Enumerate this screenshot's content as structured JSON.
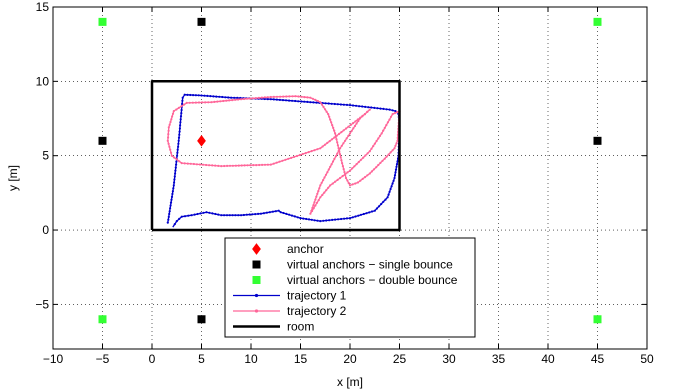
{
  "chart_data": {
    "type": "scatter",
    "xlabel": "x [m]",
    "ylabel": "y [m]",
    "xlim": [
      -10,
      50
    ],
    "ylim": [
      -8,
      15
    ],
    "xticks": [
      -10,
      -5,
      0,
      5,
      10,
      15,
      20,
      25,
      30,
      35,
      40,
      45,
      50
    ],
    "yticks": [
      -5,
      0,
      5,
      10,
      15
    ],
    "xtick_labels": [
      "−10",
      "−5",
      "0",
      "5",
      "10",
      "15",
      "20",
      "25",
      "30",
      "35",
      "40",
      "45",
      "50"
    ],
    "ytick_labels": [
      "−5",
      "0",
      "5",
      "10",
      "15"
    ],
    "grid": true,
    "legend_position": "bottom-center",
    "series": [
      {
        "name": "anchor",
        "marker": "diamond",
        "color": "#ff0000",
        "points": [
          [
            5,
            6
          ]
        ]
      },
      {
        "name": "virtual anchors − single bounce",
        "marker": "square",
        "color": "#000000",
        "points": [
          [
            -5,
            6
          ],
          [
            45,
            6
          ],
          [
            5,
            14
          ],
          [
            5,
            -6
          ]
        ]
      },
      {
        "name": "virtual anchors − double bounce",
        "marker": "square",
        "color": "#33ff33",
        "points": [
          [
            -5,
            14
          ],
          [
            45,
            14
          ],
          [
            -5,
            -6
          ],
          [
            45,
            -6
          ]
        ]
      },
      {
        "name": "trajectory 1",
        "marker": "line-dots",
        "color": "#0000cc",
        "points": [
          [
            1.6,
            0.5
          ],
          [
            2.2,
            3
          ],
          [
            2.7,
            6
          ],
          [
            3.1,
            8.9
          ],
          [
            3.3,
            9.1
          ],
          [
            5,
            9.05
          ],
          [
            8,
            8.9
          ],
          [
            12,
            8.8
          ],
          [
            16,
            8.6
          ],
          [
            20,
            8.4
          ],
          [
            24,
            8.1
          ],
          [
            24.6,
            8
          ],
          [
            24.9,
            7.8
          ],
          [
            25,
            7
          ],
          [
            24.9,
            5
          ],
          [
            24.5,
            3.5
          ],
          [
            23.8,
            2.2
          ],
          [
            22.5,
            1.3
          ],
          [
            20,
            0.8
          ],
          [
            17,
            0.6
          ],
          [
            15,
            0.8
          ],
          [
            13,
            1.2
          ],
          [
            12.8,
            1.3
          ],
          [
            11,
            1.1
          ],
          [
            9,
            1.0
          ],
          [
            7,
            1.0
          ],
          [
            5.5,
            1.2
          ],
          [
            4,
            1.0
          ],
          [
            3,
            0.9
          ],
          [
            2.5,
            0.6
          ],
          [
            2.1,
            0.2
          ]
        ]
      },
      {
        "name": "trajectory 2",
        "marker": "line-dots",
        "color": "#ff6699",
        "points": [
          [
            1.7,
            6.9
          ],
          [
            2.2,
            8.0
          ],
          [
            3.5,
            8.55
          ],
          [
            6,
            8.6
          ],
          [
            9,
            8.8
          ],
          [
            12,
            8.95
          ],
          [
            14.5,
            9.0
          ],
          [
            16,
            8.9
          ],
          [
            17,
            8.6
          ],
          [
            17.8,
            7.8
          ],
          [
            18.5,
            6.5
          ],
          [
            19.2,
            4.5
          ],
          [
            19.6,
            3.5
          ],
          [
            20,
            3.0
          ],
          [
            20.8,
            3.2
          ],
          [
            22,
            3.8
          ],
          [
            23.5,
            4.8
          ],
          [
            24.5,
            5.5
          ],
          [
            24.8,
            6.0
          ],
          [
            24.9,
            7.0
          ],
          [
            25,
            8.0
          ],
          [
            24.3,
            7.8
          ],
          [
            23.2,
            6.5
          ],
          [
            22,
            5.3
          ],
          [
            20,
            4.0
          ],
          [
            18,
            3.0
          ],
          [
            17,
            2.2
          ],
          [
            16,
            1.1
          ],
          [
            17,
            3
          ],
          [
            19,
            5.5
          ],
          [
            21,
            7.5
          ],
          [
            22,
            8.1
          ],
          [
            21.5,
            7.8
          ],
          [
            17,
            5.5
          ],
          [
            12,
            4.4
          ],
          [
            7,
            4.3
          ],
          [
            3,
            4.5
          ],
          [
            2,
            5
          ],
          [
            1.6,
            6.0
          ],
          [
            1.7,
            6.9
          ]
        ]
      },
      {
        "name": "room",
        "marker": "line",
        "color": "#000000",
        "points": [
          [
            0,
            0
          ],
          [
            25,
            0
          ],
          [
            25,
            10
          ],
          [
            0,
            10
          ],
          [
            0,
            0
          ]
        ]
      }
    ]
  }
}
